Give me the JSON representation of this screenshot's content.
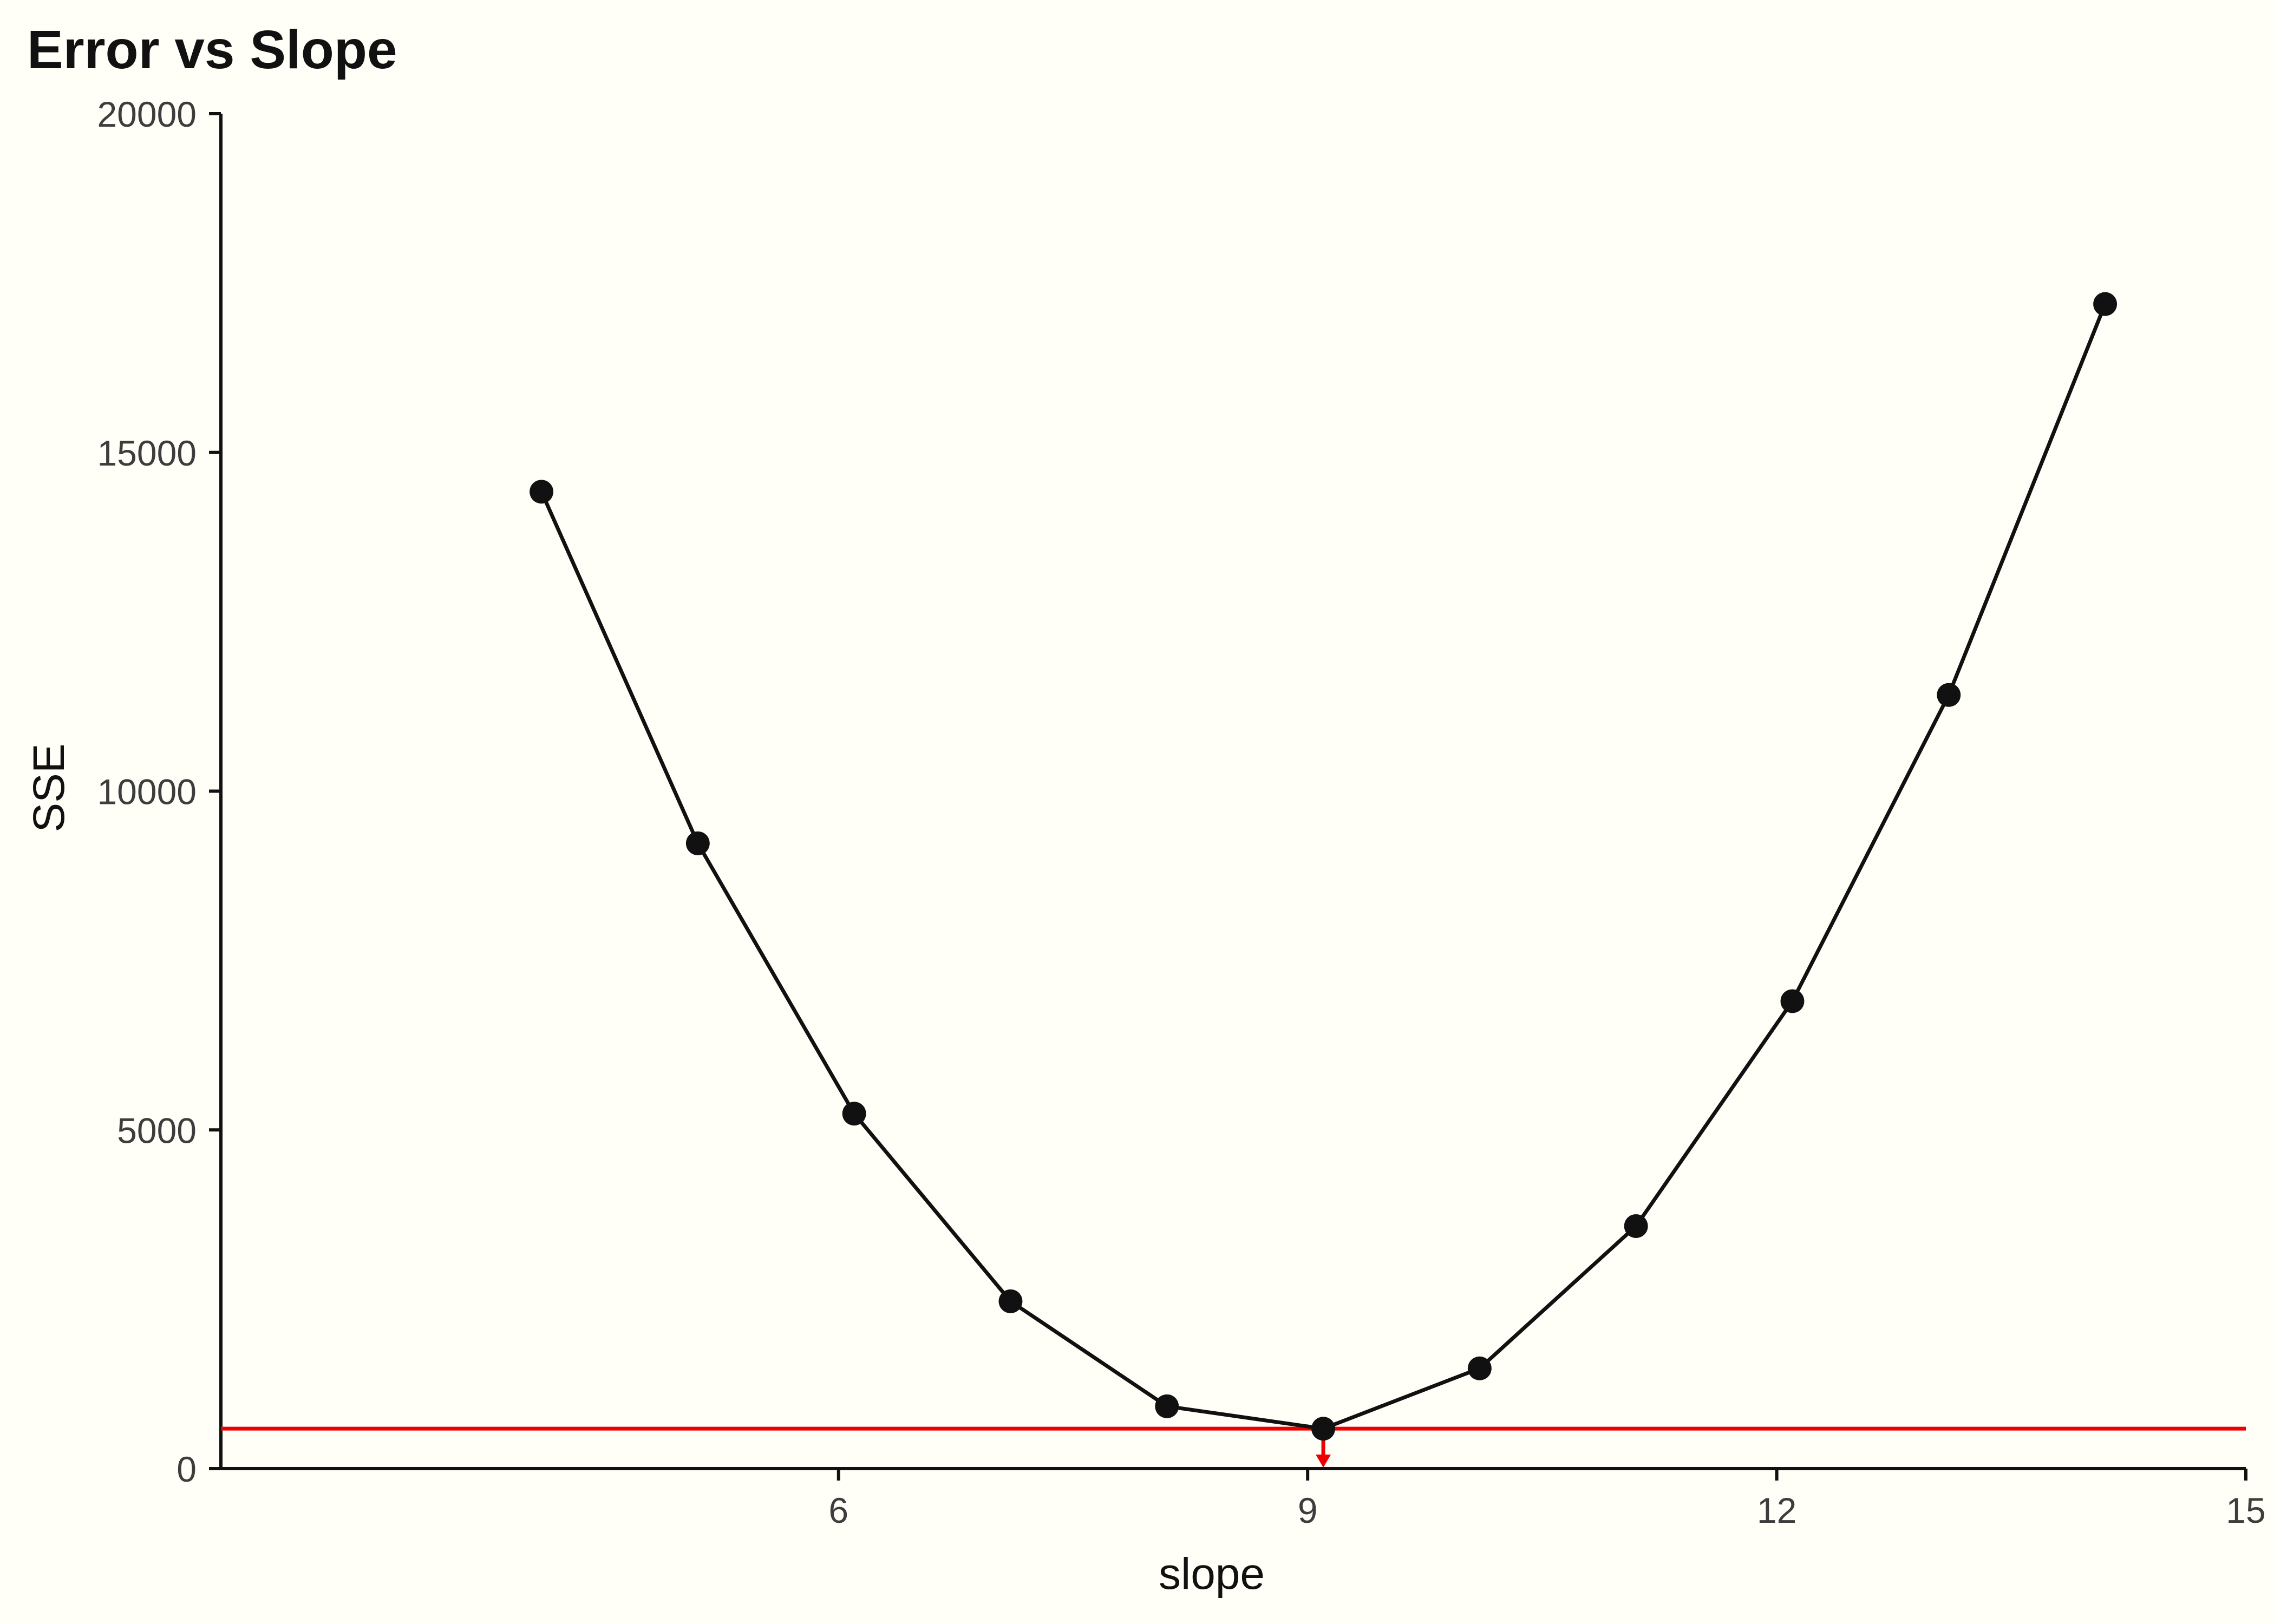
{
  "chart_data": {
    "type": "line",
    "title": "Error vs Slope",
    "xlabel": "slope",
    "ylabel": "SSE",
    "xlim": [
      2.05,
      15
    ],
    "ylim": [
      0,
      20000
    ],
    "x_ticks": [
      6,
      9,
      12,
      15
    ],
    "y_ticks": [
      0,
      5000,
      10000,
      15000,
      20000
    ],
    "grid": false,
    "legend": "none",
    "series": [
      {
        "x": [
          4.1,
          5.1,
          6.1,
          7.1,
          8.1,
          9.1,
          10.1,
          11.1,
          12.1,
          13.1,
          14.1
        ],
        "y": [
          14420,
          9230,
          5240,
          2470,
          920,
          590,
          1480,
          3580,
          6900,
          11420,
          17190
        ],
        "color": "#111111"
      }
    ],
    "annotations": {
      "min_sse": 590,
      "min_slope": 9.1,
      "hline_color": "#ee0000"
    }
  }
}
